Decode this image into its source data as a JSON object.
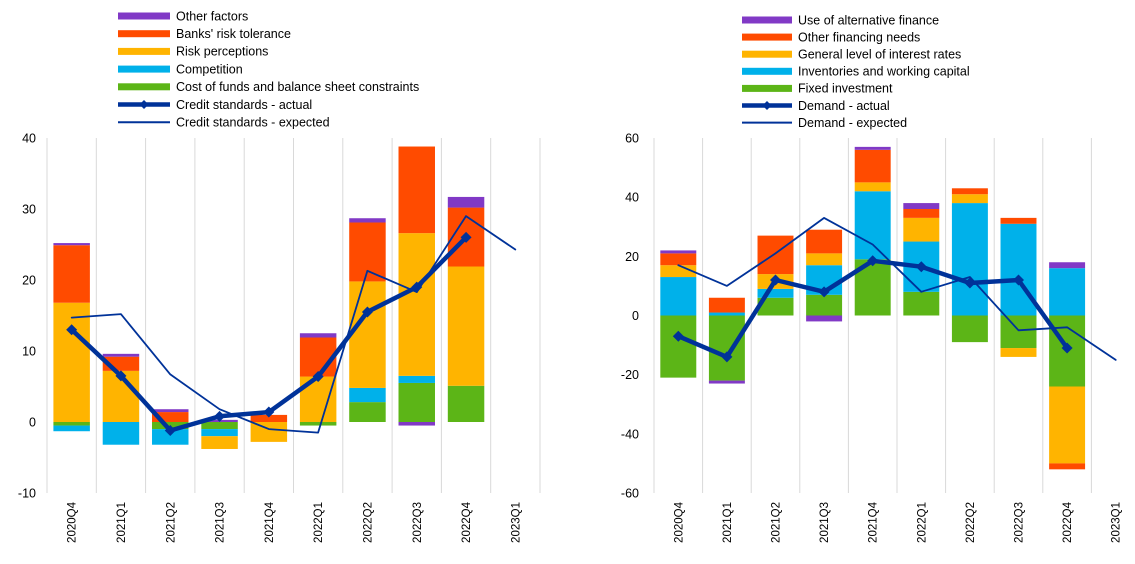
{
  "chart_data": [
    {
      "type": "bar",
      "categories": [
        "2020Q4",
        "2021Q1",
        "2021Q2",
        "2021Q3",
        "2021Q4",
        "2022Q1",
        "2022Q2",
        "2022Q3",
        "2022Q4",
        "2023Q1"
      ],
      "ylim": [
        -10,
        40
      ],
      "yticks": [
        -10,
        0,
        10,
        20,
        30,
        40
      ],
      "grid": "vertical gridlines",
      "legend_position": "top",
      "series": [
        {
          "name": "Cost of funds and balance sheet constraints",
          "color": "#5cb517",
          "values": [
            -0.5,
            0,
            -1,
            -1,
            0,
            -0.5,
            2.8,
            5.5,
            5.1,
            null
          ]
        },
        {
          "name": "Competition",
          "color": "#00b1ea",
          "values": [
            -0.8,
            -3.2,
            -2.2,
            -1,
            0,
            0,
            2,
            1,
            0,
            null
          ]
        },
        {
          "name": "Risk perceptions",
          "color": "#ffb400",
          "values": [
            16.8,
            7.2,
            0,
            -1.8,
            -2.8,
            6.4,
            15,
            20.1,
            16.8,
            null
          ]
        },
        {
          "name": "Banks' risk tolerance",
          "color": "#ff4b00",
          "values": [
            8.1,
            2,
            1.4,
            0,
            1,
            5.5,
            8.3,
            12.2,
            8.3,
            null
          ]
        },
        {
          "name": "Other factors",
          "color": "#8139c6",
          "values": [
            0.3,
            0.4,
            0.4,
            0.3,
            0,
            0.6,
            0.6,
            -0.5,
            1.5,
            null
          ]
        }
      ],
      "lines": [
        {
          "name": "Credit standards - actual",
          "color": "#003299",
          "style": "thick-with-markers",
          "values": [
            13,
            6.5,
            -1.2,
            0.8,
            1.4,
            6.4,
            15.5,
            19,
            26,
            null
          ]
        },
        {
          "name": "Credit standards - expected",
          "color": "#003299",
          "style": "thin",
          "values": [
            14.7,
            15.2,
            6.7,
            1.8,
            -1,
            -1.5,
            21.3,
            18.3,
            29,
            24.3
          ]
        }
      ]
    },
    {
      "type": "bar",
      "categories": [
        "2020Q4",
        "2021Q1",
        "2021Q2",
        "2021Q3",
        "2021Q4",
        "2022Q1",
        "2022Q2",
        "2022Q3",
        "2022Q4",
        "2023Q1"
      ],
      "ylim": [
        -60,
        60
      ],
      "yticks": [
        -60,
        -40,
        -20,
        0,
        20,
        40,
        60
      ],
      "grid": "vertical gridlines",
      "legend_position": "top",
      "series": [
        {
          "name": "Fixed investment",
          "color": "#5cb517",
          "values": [
            -21,
            -22,
            6,
            7,
            19,
            8,
            -9,
            -11,
            -24,
            null
          ]
        },
        {
          "name": "Inventories and working capital",
          "color": "#00b1ea",
          "values": [
            13,
            1,
            3,
            10,
            23,
            17,
            38,
            31,
            16,
            null
          ]
        },
        {
          "name": "General level of interest rates",
          "color": "#ffb400",
          "values": [
            4,
            0,
            5,
            4,
            3,
            8,
            3,
            -3,
            -26,
            null
          ]
        },
        {
          "name": "Other financing needs",
          "color": "#ff4b00",
          "values": [
            4,
            5,
            13,
            8,
            11,
            3,
            2,
            2,
            -2,
            null
          ]
        },
        {
          "name": "Use of alternative finance",
          "color": "#8139c6",
          "values": [
            1,
            -1,
            0,
            -2,
            1,
            2,
            0,
            0,
            2,
            null
          ]
        }
      ],
      "lines": [
        {
          "name": "Demand - actual",
          "color": "#003299",
          "style": "thick-with-markers",
          "values": [
            -7,
            -14,
            12,
            8,
            18.5,
            16.5,
            11,
            12,
            -11,
            null
          ]
        },
        {
          "name": "Demand - expected",
          "color": "#003299",
          "style": "thin",
          "values": [
            17,
            10,
            21,
            33,
            24,
            8,
            13,
            -5,
            -4,
            -15
          ]
        }
      ]
    }
  ]
}
